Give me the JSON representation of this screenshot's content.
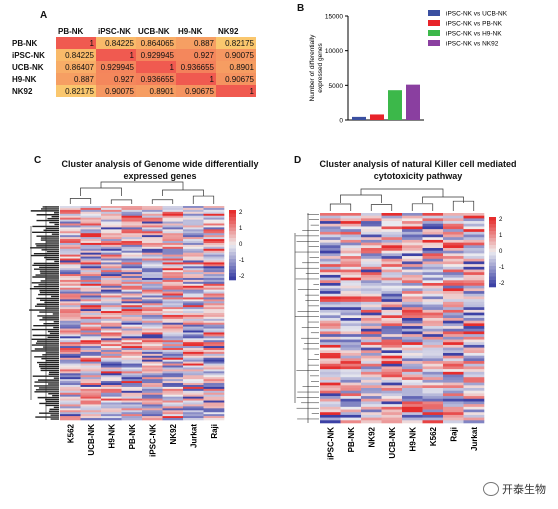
{
  "panels": {
    "A": "A",
    "B": "B",
    "C": "C",
    "D": "D"
  },
  "table": {
    "headers": [
      "PB-NK",
      "iPSC-NK",
      "UCB-NK",
      "H9-NK",
      "NK92"
    ],
    "rows": [
      {
        "label": "PB-NK",
        "values": [
          "1",
          "0.84225",
          "0.864065",
          "0.887",
          "0.82175"
        ]
      },
      {
        "label": "iPSC-NK",
        "values": [
          "0.84225",
          "1",
          "0.929945",
          "0.927",
          "0.90075"
        ]
      },
      {
        "label": "UCB-NK",
        "values": [
          "0.86407",
          "0.929945",
          "1",
          "0.936655",
          "0.8901"
        ]
      },
      {
        "label": "H9-NK",
        "values": [
          "0.887",
          "0.927",
          "0.936655",
          "1",
          "0.90675"
        ]
      },
      {
        "label": "NK92",
        "values": [
          "0.82175",
          "0.90075",
          "0.8901",
          "0.90675",
          "1"
        ]
      }
    ]
  },
  "chart_data": {
    "type": "bar",
    "categories": [
      "iPSC-NK vs UCB-NK",
      "iPSC-NK vs PB-NK",
      "iPSC-NK vs H9-NK",
      "iPSC-NK vs NK92"
    ],
    "values": [
      450,
      800,
      4300,
      5100
    ],
    "colors": [
      "#3a4fa0",
      "#e8232a",
      "#3cb84a",
      "#8a3fa0"
    ],
    "ylabel": "Number of differentially expressed genes",
    "ylim": [
      0,
      15000
    ],
    "yticks": [
      "0",
      "5000",
      "10000",
      "15000"
    ],
    "legend": "top-right"
  },
  "heatmapC": {
    "title": "Cluster analysis of Genome wide differentially expressed genes",
    "columns": [
      "K562",
      "UCB-NK",
      "H9-NK",
      "PB-NK",
      "iPSC-NK",
      "NK92",
      "Jurkat",
      "Raji"
    ],
    "scale": [
      "2",
      "1",
      "0",
      "-1",
      "-2"
    ]
  },
  "heatmapD": {
    "title": "Cluster analysis of natural Killer cell mediated cytotoxicity pathway",
    "columns": [
      "iPSC-NK",
      "PB-NK",
      "NK92",
      "UCB-NK",
      "H9-NK",
      "K562",
      "Raji",
      "Jurkat"
    ],
    "scale": [
      "2",
      "1",
      "0",
      "-1",
      "-2"
    ]
  },
  "watermark": "开泰生物"
}
